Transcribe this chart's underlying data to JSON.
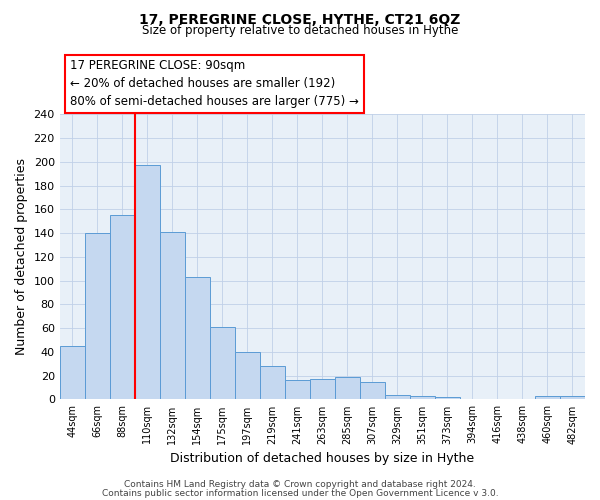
{
  "title": "17, PEREGRINE CLOSE, HYTHE, CT21 6QZ",
  "subtitle": "Size of property relative to detached houses in Hythe",
  "xlabel": "Distribution of detached houses by size in Hythe",
  "ylabel": "Number of detached properties",
  "bar_labels": [
    "44sqm",
    "66sqm",
    "88sqm",
    "110sqm",
    "132sqm",
    "154sqm",
    "175sqm",
    "197sqm",
    "219sqm",
    "241sqm",
    "263sqm",
    "285sqm",
    "307sqm",
    "329sqm",
    "351sqm",
    "373sqm",
    "394sqm",
    "416sqm",
    "438sqm",
    "460sqm",
    "482sqm"
  ],
  "bar_values": [
    45,
    140,
    155,
    197,
    141,
    103,
    61,
    40,
    28,
    16,
    17,
    19,
    15,
    4,
    3,
    2,
    0,
    0,
    0,
    3,
    3
  ],
  "bar_color": "#c5d8f0",
  "bar_edge_color": "#5b9bd5",
  "vline_color": "red",
  "vline_x_index": 2.5,
  "ylim": [
    0,
    240
  ],
  "yticks": [
    0,
    20,
    40,
    60,
    80,
    100,
    120,
    140,
    160,
    180,
    200,
    220,
    240
  ],
  "annotation_box_text": "17 PEREGRINE CLOSE: 90sqm\n← 20% of detached houses are smaller (192)\n80% of semi-detached houses are larger (775) →",
  "footer1": "Contains HM Land Registry data © Crown copyright and database right 2024.",
  "footer2": "Contains public sector information licensed under the Open Government Licence v 3.0.",
  "grid_color": "#c0d0e8",
  "background_color": "#e8f0f8"
}
